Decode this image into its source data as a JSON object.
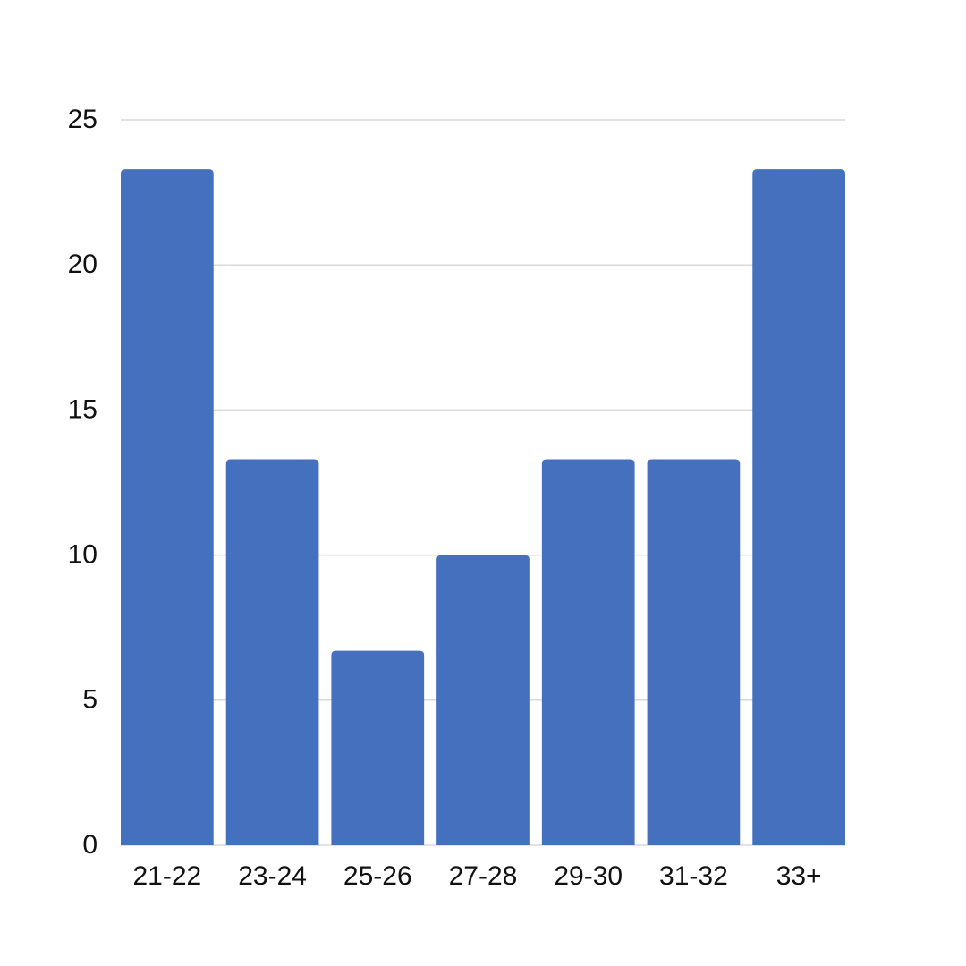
{
  "chart_data": {
    "type": "bar",
    "categories": [
      "21-22",
      "23-24",
      "25-26",
      "27-28",
      "29-30",
      "31-32",
      "33+"
    ],
    "values": [
      23.3,
      13.3,
      6.7,
      10,
      13.3,
      13.3,
      23.3
    ],
    "color": "#4470be",
    "ylim": [
      0,
      25
    ],
    "yticks": [
      0,
      5,
      10,
      15,
      20,
      25
    ],
    "grid": true
  }
}
